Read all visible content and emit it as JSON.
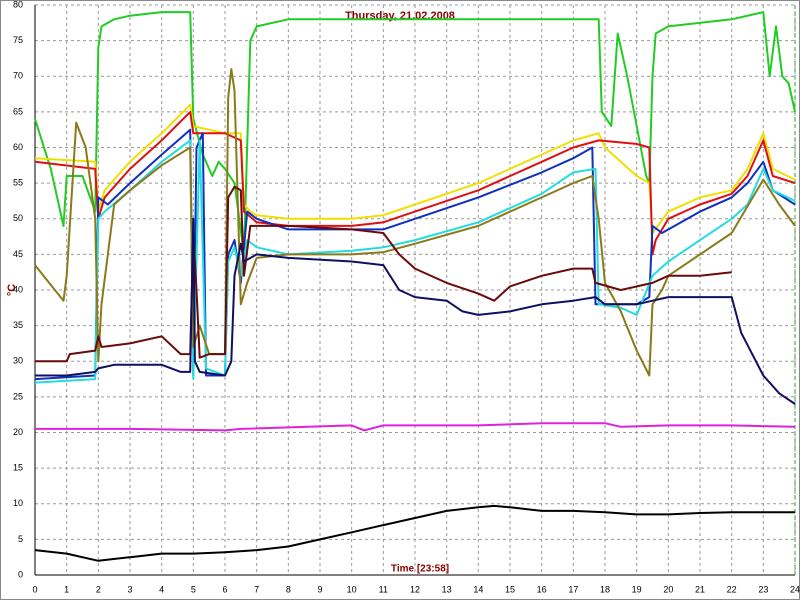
{
  "chart_data": {
    "type": "line",
    "title": "Thursday,  21.02.2008",
    "ylabel": "°C",
    "xlabel": "Time [23:58]",
    "xlim": [
      0,
      24
    ],
    "ylim": [
      0,
      80
    ],
    "xticks": [
      0,
      1,
      2,
      3,
      4,
      5,
      6,
      7,
      8,
      9,
      10,
      11,
      12,
      13,
      14,
      15,
      16,
      17,
      18,
      19,
      20,
      21,
      22,
      23,
      24
    ],
    "yticks": [
      0,
      5,
      10,
      15,
      20,
      25,
      30,
      35,
      40,
      45,
      50,
      55,
      60,
      65,
      70,
      75,
      80
    ],
    "grid": true,
    "series": [
      {
        "color": "#22cc22",
        "x": [
          0,
          0.5,
          0.9,
          1.0,
          1.5,
          1.9,
          2.0,
          2.1,
          2.5,
          3,
          4,
          4.9,
          5.0,
          5.3,
          5.6,
          5.8,
          6.0,
          6.3,
          6.6,
          6.8,
          7,
          8,
          10,
          12,
          14,
          16,
          17.8,
          17.9,
          18.2,
          18.4,
          18.7,
          19,
          19.3,
          19.4,
          19.5,
          19.6,
          20,
          22,
          23,
          23.2,
          23.4,
          23.6,
          23.8,
          24
        ],
        "values": [
          64,
          57,
          49,
          56,
          56,
          51,
          74,
          77,
          78,
          78.5,
          79,
          79,
          64,
          59,
          56,
          58,
          57,
          55,
          45,
          75,
          77,
          78,
          78,
          78,
          78,
          78,
          78,
          65,
          63,
          76,
          70,
          63,
          56,
          55,
          70,
          76,
          77,
          78,
          79,
          70,
          77,
          70,
          69,
          65
        ]
      },
      {
        "color": "#f0e000",
        "x": [
          0,
          1.9,
          2.0,
          2.2,
          3,
          4,
          4.9,
          5.0,
          6.0,
          6.5,
          6.6,
          6.8,
          7,
          8,
          10,
          11,
          12,
          14,
          16,
          17,
          17.8,
          18,
          18.5,
          19,
          19.4,
          19.5,
          20,
          21,
          22,
          22.5,
          23,
          23.3,
          24
        ],
        "values": [
          58.5,
          58,
          51,
          54,
          58,
          62,
          66,
          63,
          62,
          62,
          52,
          51,
          50.5,
          50,
          50,
          50.5,
          52,
          55,
          59,
          61,
          62,
          60,
          58,
          56,
          55,
          48,
          51,
          53,
          54,
          57,
          62,
          57,
          55.5
        ]
      },
      {
        "color": "#dd1111",
        "x": [
          0,
          1.9,
          2.0,
          2.2,
          3,
          4,
          4.9,
          5.0,
          6,
          6.5,
          6.6,
          7,
          8,
          10,
          11,
          12,
          14,
          16,
          17,
          17.8,
          19,
          19.4,
          19.5,
          19.6,
          20,
          21,
          22,
          22.5,
          23,
          23.3,
          24
        ],
        "values": [
          58,
          57,
          50,
          53,
          57,
          61,
          65,
          62,
          62,
          61,
          51,
          49.5,
          49,
          49,
          49.5,
          51,
          54,
          58,
          60,
          61,
          60.5,
          60,
          45,
          47,
          50,
          52,
          53.5,
          56,
          61,
          56,
          55
        ]
      },
      {
        "color": "#1030c0",
        "x": [
          0,
          1.9,
          2.0,
          2.3,
          3,
          4,
          4.9,
          5.0,
          5.1,
          5.3,
          5.4,
          5.8,
          6.0,
          6.1,
          6.3,
          6.5,
          6.7,
          7,
          8,
          10,
          11,
          12,
          14,
          16,
          17,
          17.6,
          17.7,
          18,
          19,
          19.4,
          19.5,
          19.8,
          21,
          22,
          22.5,
          23,
          23.3,
          24
        ],
        "values": [
          27.5,
          28,
          53,
          52,
          55,
          59,
          62.5,
          28,
          60,
          62,
          28,
          28,
          28,
          45,
          47,
          41,
          51,
          50,
          48.5,
          48.5,
          48.5,
          50,
          53,
          56.5,
          58.5,
          60,
          38,
          38,
          38,
          39,
          49,
          48,
          51,
          53,
          55,
          58,
          54,
          52
        ]
      },
      {
        "color": "#22dddd",
        "x": [
          0,
          1.9,
          2.0,
          2.2,
          3,
          4,
          4.9,
          5.0,
          5.2,
          5.4,
          6.0,
          6.1,
          6.3,
          6.5,
          6.7,
          7,
          8,
          10,
          11,
          12,
          14,
          16,
          17,
          17.7,
          17.8,
          18.5,
          19,
          19.5,
          20,
          21,
          22,
          22.5,
          23,
          23.3,
          24
        ],
        "values": [
          27,
          27.5,
          50,
          51,
          54,
          58,
          61,
          27.5,
          61,
          29,
          28,
          44,
          46,
          42,
          47,
          46,
          45,
          45.5,
          46,
          47,
          49.5,
          53.5,
          56.5,
          57,
          38,
          37.5,
          36.5,
          42,
          44,
          47,
          50,
          52,
          57,
          54,
          52.5
        ]
      },
      {
        "color": "#8b7a1a",
        "x": [
          0,
          0.9,
          1.0,
          1.3,
          1.6,
          1.9,
          2.0,
          2.1,
          2.5,
          3,
          4,
          4.9,
          5.0,
          5.2,
          5.5,
          6.0,
          6.1,
          6.2,
          6.3,
          6.5,
          6.7,
          7,
          8,
          10,
          11,
          12,
          14,
          16,
          17,
          17.6,
          17.8,
          18,
          18.5,
          19,
          19.4,
          19.5,
          19.8,
          20,
          21,
          22,
          23,
          23.5,
          24
        ],
        "values": [
          43.5,
          38.5,
          42,
          63.5,
          60,
          50,
          30,
          38,
          52,
          54,
          57.5,
          60,
          32,
          35,
          31,
          31,
          67,
          71,
          68,
          38,
          41,
          44.5,
          45,
          45,
          45.3,
          46.5,
          49,
          53,
          55,
          56,
          50,
          41,
          37,
          31.5,
          28,
          38,
          40,
          42,
          45,
          48,
          55.5,
          52,
          49
        ]
      },
      {
        "color": "#6b0a0a",
        "x": [
          0,
          1,
          1.1,
          1.9,
          2.0,
          2.1,
          3,
          4,
          4.6,
          4.9,
          5.0,
          5.1,
          5.2,
          5.5,
          6.0,
          6.1,
          6.3,
          6.5,
          6.6,
          6.8,
          7,
          8,
          10,
          11,
          11.5,
          12,
          13,
          14,
          14.5,
          15,
          16,
          17,
          17.6,
          17.7,
          18.5,
          19.5,
          20,
          21,
          22
        ],
        "values": [
          30,
          30,
          31,
          31.5,
          33.5,
          32,
          32.5,
          33.5,
          31,
          31,
          48,
          40,
          30.5,
          31,
          31,
          53,
          54.5,
          54,
          42,
          49,
          49,
          49,
          48.5,
          48,
          45,
          43,
          41,
          39.5,
          38.5,
          40.5,
          42,
          43,
          43,
          41,
          40,
          41,
          42,
          42,
          42.5
        ]
      },
      {
        "color": "#101060",
        "x": [
          0,
          1,
          1.9,
          2,
          2.5,
          3,
          4,
          4.6,
          4.9,
          5.0,
          5.05,
          5.2,
          6,
          6.2,
          6.3,
          6.5,
          6.6,
          7,
          8,
          10,
          11,
          11.5,
          12,
          13,
          13.5,
          14,
          15,
          16,
          17,
          17.7,
          18,
          19,
          19.5,
          20,
          21,
          22,
          22.3,
          23,
          23.5,
          24
        ],
        "values": [
          28,
          28,
          28.5,
          29,
          29.5,
          29.5,
          29.5,
          28.5,
          28.5,
          50,
          30,
          28.5,
          28,
          30,
          42,
          46.5,
          44,
          45,
          44.5,
          44,
          43.5,
          40,
          39,
          38.5,
          37,
          36.5,
          37,
          38,
          38.5,
          39,
          38,
          38,
          38.5,
          39,
          39,
          39,
          34,
          28,
          25.5,
          24
        ]
      },
      {
        "color": "#dd22dd",
        "x": [
          0,
          3,
          6,
          6.5,
          10,
          10.4,
          11,
          14,
          16,
          18,
          18.5,
          20,
          22,
          24
        ],
        "values": [
          20.5,
          20.5,
          20.3,
          20.5,
          21,
          20.3,
          21,
          21,
          21.3,
          21.3,
          20.8,
          21,
          21,
          20.8
        ]
      },
      {
        "color": "#000000",
        "x": [
          0,
          1,
          2,
          3,
          4,
          5,
          6,
          7,
          8,
          9,
          10,
          11,
          12,
          13,
          14,
          14.5,
          15,
          16,
          17,
          18,
          19,
          20,
          21,
          22,
          23,
          24
        ],
        "values": [
          3.5,
          3,
          2,
          2.5,
          3,
          3,
          3.2,
          3.5,
          4,
          5,
          6,
          7,
          8,
          9,
          9.5,
          9.7,
          9.5,
          9,
          9,
          8.8,
          8.5,
          8.5,
          8.7,
          8.8,
          8.8,
          8.8
        ]
      }
    ]
  }
}
